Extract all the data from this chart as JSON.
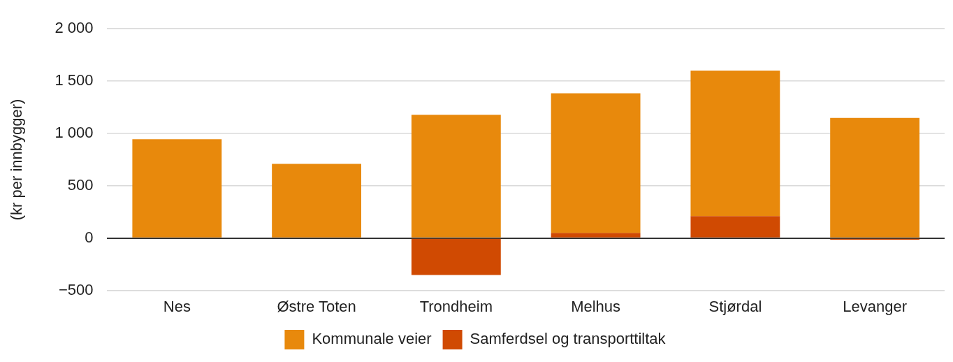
{
  "chart_data": {
    "type": "bar",
    "ylabel": "(kr per innbygger)",
    "categories": [
      "Nes",
      "Østre Toten",
      "Trondheim",
      "Melhus",
      "Stjørdal",
      "Levanger"
    ],
    "stacked": true,
    "series": [
      {
        "name": "Samferdsel og transporttiltak",
        "color": "#d04a02",
        "values": [
          0,
          null,
          -352,
          50,
          210,
          -15
        ]
      },
      {
        "name": "Kommunale veier",
        "color": "#e8890c",
        "values": [
          945,
          710,
          1179,
          1333,
          1390,
          1148
        ]
      }
    ],
    "ylim": [
      -500,
      2000
    ],
    "yticks": [
      {
        "value": -500,
        "label": "−500"
      },
      0,
      500,
      {
        "value": 1000,
        "label": "1 000"
      },
      {
        "value": 1500,
        "label": "1 500"
      },
      {
        "value": 2000,
        "label": "2 000"
      }
    ],
    "grid": "y",
    "legend": "bottom"
  }
}
